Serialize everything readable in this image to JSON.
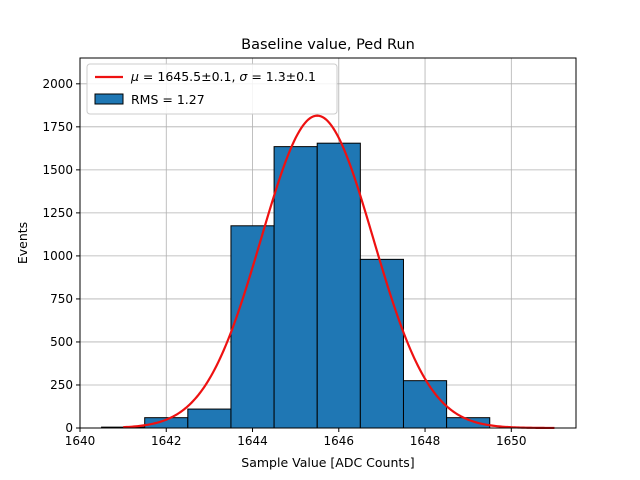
{
  "chart_data": {
    "type": "bar",
    "title": "Baseline value, Ped Run",
    "xlabel": "Sample Value [ADC Counts]",
    "ylabel": "Events",
    "xlim": [
      1640,
      1651.5
    ],
    "ylim": [
      0,
      2150
    ],
    "xticks": [
      1640,
      1642,
      1644,
      1646,
      1648,
      1650
    ],
    "yticks": [
      0,
      250,
      500,
      750,
      1000,
      1250,
      1500,
      1750,
      2000
    ],
    "grid": true,
    "legend_position": "top-left",
    "histogram": {
      "name": "RMS = 1.27",
      "color": "#1f77b4",
      "edge_color": "#000000",
      "bins": [
        {
          "x0": 1640.5,
          "x1": 1641.5,
          "value": 5
        },
        {
          "x0": 1641.5,
          "x1": 1642.5,
          "value": 60
        },
        {
          "x0": 1642.5,
          "x1": 1643.5,
          "value": 110
        },
        {
          "x0": 1643.5,
          "x1": 1644.5,
          "value": 1175
        },
        {
          "x0": 1644.5,
          "x1": 1645.5,
          "value": 1635
        },
        {
          "x0": 1645.5,
          "x1": 1646.5,
          "value": 1655
        },
        {
          "x0": 1646.5,
          "x1": 1647.5,
          "value": 980
        },
        {
          "x0": 1647.5,
          "x1": 1648.5,
          "value": 275
        },
        {
          "x0": 1648.5,
          "x1": 1649.5,
          "value": 60
        }
      ]
    },
    "fit": {
      "name": "$\\mu = 1645.5 \\pm 0.1$, $\\sigma = 1.3 \\pm 0.1$",
      "mu_label": "μ",
      "mu_text": " = 1645.5±0.1, ",
      "sigma_label": "σ",
      "sigma_text": " = 1.3±0.1",
      "color": "#ee1111",
      "mu": 1645.5,
      "sigma": 1.3,
      "amplitude": 1815,
      "x_range": [
        1641,
        1651
      ]
    }
  }
}
